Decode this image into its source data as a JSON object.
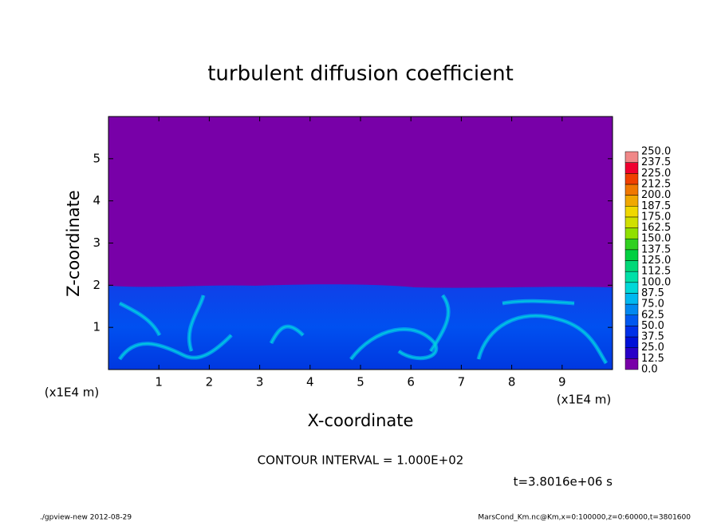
{
  "chart_data": {
    "type": "contour",
    "title": "turbulent diffusion coefficient",
    "x_label": "X-coordinate",
    "y_label": "Z-coordinate",
    "x_unit_labels": [
      "(x1E4 m)",
      "(x1E4 m)"
    ],
    "xlim": [
      0,
      10
    ],
    "ylim": [
      0,
      6
    ],
    "xticks": [
      1,
      2,
      3,
      4,
      5,
      6,
      7,
      8,
      9
    ],
    "yticks": [
      1,
      2,
      3,
      4,
      5
    ],
    "colorbar": {
      "levels": [
        {
          "value": 0,
          "label": "0.0"
        },
        {
          "value": 12.5,
          "label": "12.5"
        },
        {
          "value": 25,
          "label": "25.0"
        },
        {
          "value": 37.5,
          "label": "37.5"
        },
        {
          "value": 50,
          "label": "50.0"
        },
        {
          "value": 62.5,
          "label": "62.5"
        },
        {
          "value": 75,
          "label": "75.0"
        },
        {
          "value": 87.5,
          "label": "87.5"
        },
        {
          "value": 100,
          "label": "100.0"
        },
        {
          "value": 112.5,
          "label": "112.5"
        },
        {
          "value": 125,
          "label": "125.0"
        },
        {
          "value": 137.5,
          "label": "137.5"
        },
        {
          "value": 150,
          "label": "150.0"
        },
        {
          "value": 162.5,
          "label": "162.5"
        },
        {
          "value": 175,
          "label": "175.0"
        },
        {
          "value": 187.5,
          "label": "187.5"
        },
        {
          "value": 200,
          "label": "200.0"
        },
        {
          "value": 212.5,
          "label": "212.5"
        },
        {
          "value": 225,
          "label": "225.0"
        },
        {
          "value": 237.5,
          "label": "237.5"
        },
        {
          "value": 250,
          "label": "250.0"
        }
      ],
      "colors": [
        "#7800a8",
        "#2800c8",
        "#0010d8",
        "#0030e8",
        "#0058f0",
        "#0088f0",
        "#00b8f0",
        "#00d8d8",
        "#00e0a8",
        "#00d878",
        "#00d040",
        "#30d020",
        "#90e000",
        "#d0e000",
        "#f0d800",
        "#f0a800",
        "#f07800",
        "#f04000",
        "#f00030",
        "#f08888"
      ]
    },
    "contour_interval_label": "CONTOUR INTERVAL = 1.000E+02",
    "time_label": "t=3.8016e+06 s",
    "footer_left": "./gpview-new  2012-08-29",
    "footer_right": "MarsCond_Km.nc@Km,x=0:100000,z=0:60000,t=3801600"
  }
}
